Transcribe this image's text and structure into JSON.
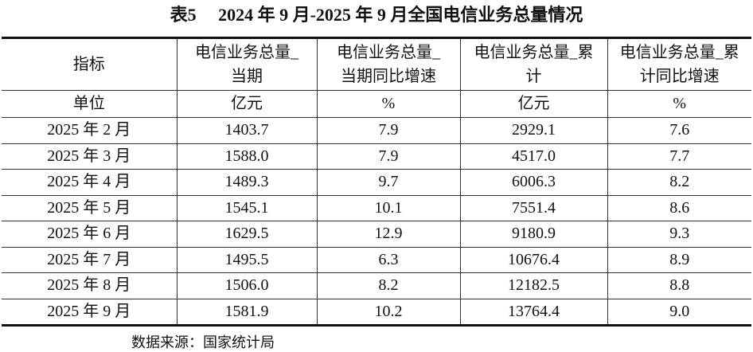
{
  "title": "表5　 2024 年 9 月-2025 年 9 月全国电信业务总量情况",
  "table": {
    "header": [
      [
        "指标"
      ],
      [
        "电信业务总量_",
        "当期"
      ],
      [
        "电信业务总量_",
        "当期同比增速"
      ],
      [
        "电信业务总量_累",
        "计"
      ],
      [
        "电信业务总量_累",
        "计同比增速"
      ]
    ],
    "units": [
      "单位",
      "亿元",
      "%",
      "亿元",
      "%"
    ],
    "rows": [
      [
        "2025 年 2 月",
        "1403.7",
        "7.9",
        "2929.1",
        "7.6"
      ],
      [
        "2025 年 3 月",
        "1588.0",
        "7.9",
        "4517.0",
        "7.7"
      ],
      [
        "2025 年 4 月",
        "1489.3",
        "9.7",
        "6006.3",
        "8.2"
      ],
      [
        "2025 年 5 月",
        "1545.1",
        "10.1",
        "7551.4",
        "8.6"
      ],
      [
        "2025 年 6 月",
        "1629.5",
        "12.9",
        "9180.9",
        "9.3"
      ],
      [
        "2025 年 7 月",
        "1495.5",
        "6.3",
        "10676.4",
        "8.9"
      ],
      [
        "2025 年 8 月",
        "1506.0",
        "8.2",
        "12182.5",
        "8.8"
      ],
      [
        "2025 年 9 月",
        "1581.9",
        "10.2",
        "13764.4",
        "9.0"
      ]
    ]
  },
  "source": "数据来源：国家统计局"
}
